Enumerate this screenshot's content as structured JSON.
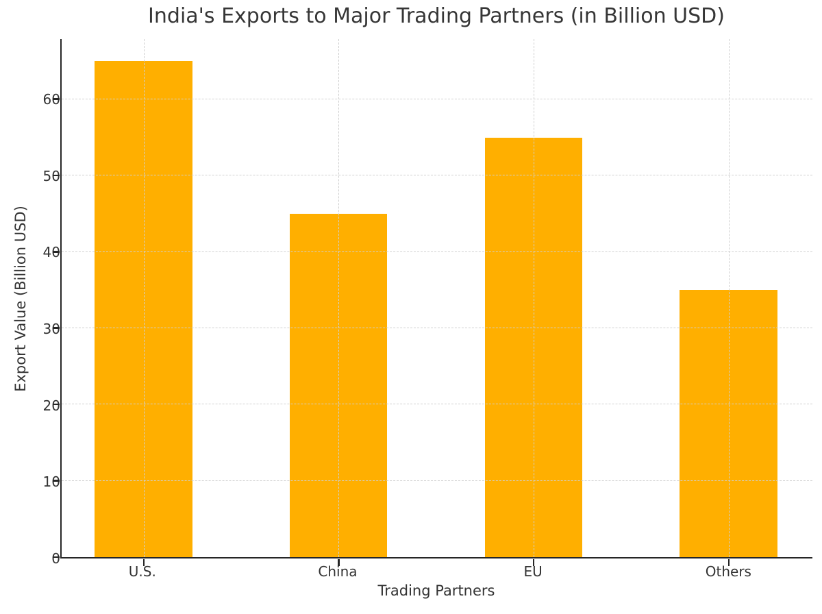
{
  "chart_data": {
    "type": "bar",
    "title": "India's Exports to Major Trading Partners (in Billion USD)",
    "xlabel": "Trading Partners",
    "ylabel": "Export Value (Billion USD)",
    "categories": [
      "U.S.",
      "China",
      "EU",
      "Others"
    ],
    "values": [
      65,
      45,
      55,
      35
    ],
    "yticks": [
      0,
      10,
      20,
      30,
      40,
      50,
      60
    ],
    "ylim": [
      0,
      67.9
    ],
    "xlim": [
      -0.42,
      3.43
    ],
    "bar_width_units": 0.5,
    "bar_color": "#FFAF00",
    "grid": true,
    "grid_axis": "both",
    "grid_style": "dashed",
    "grid_color": "#cfcfcf",
    "grid_above_bars": true,
    "legend": "none",
    "background": "#ffffff"
  }
}
